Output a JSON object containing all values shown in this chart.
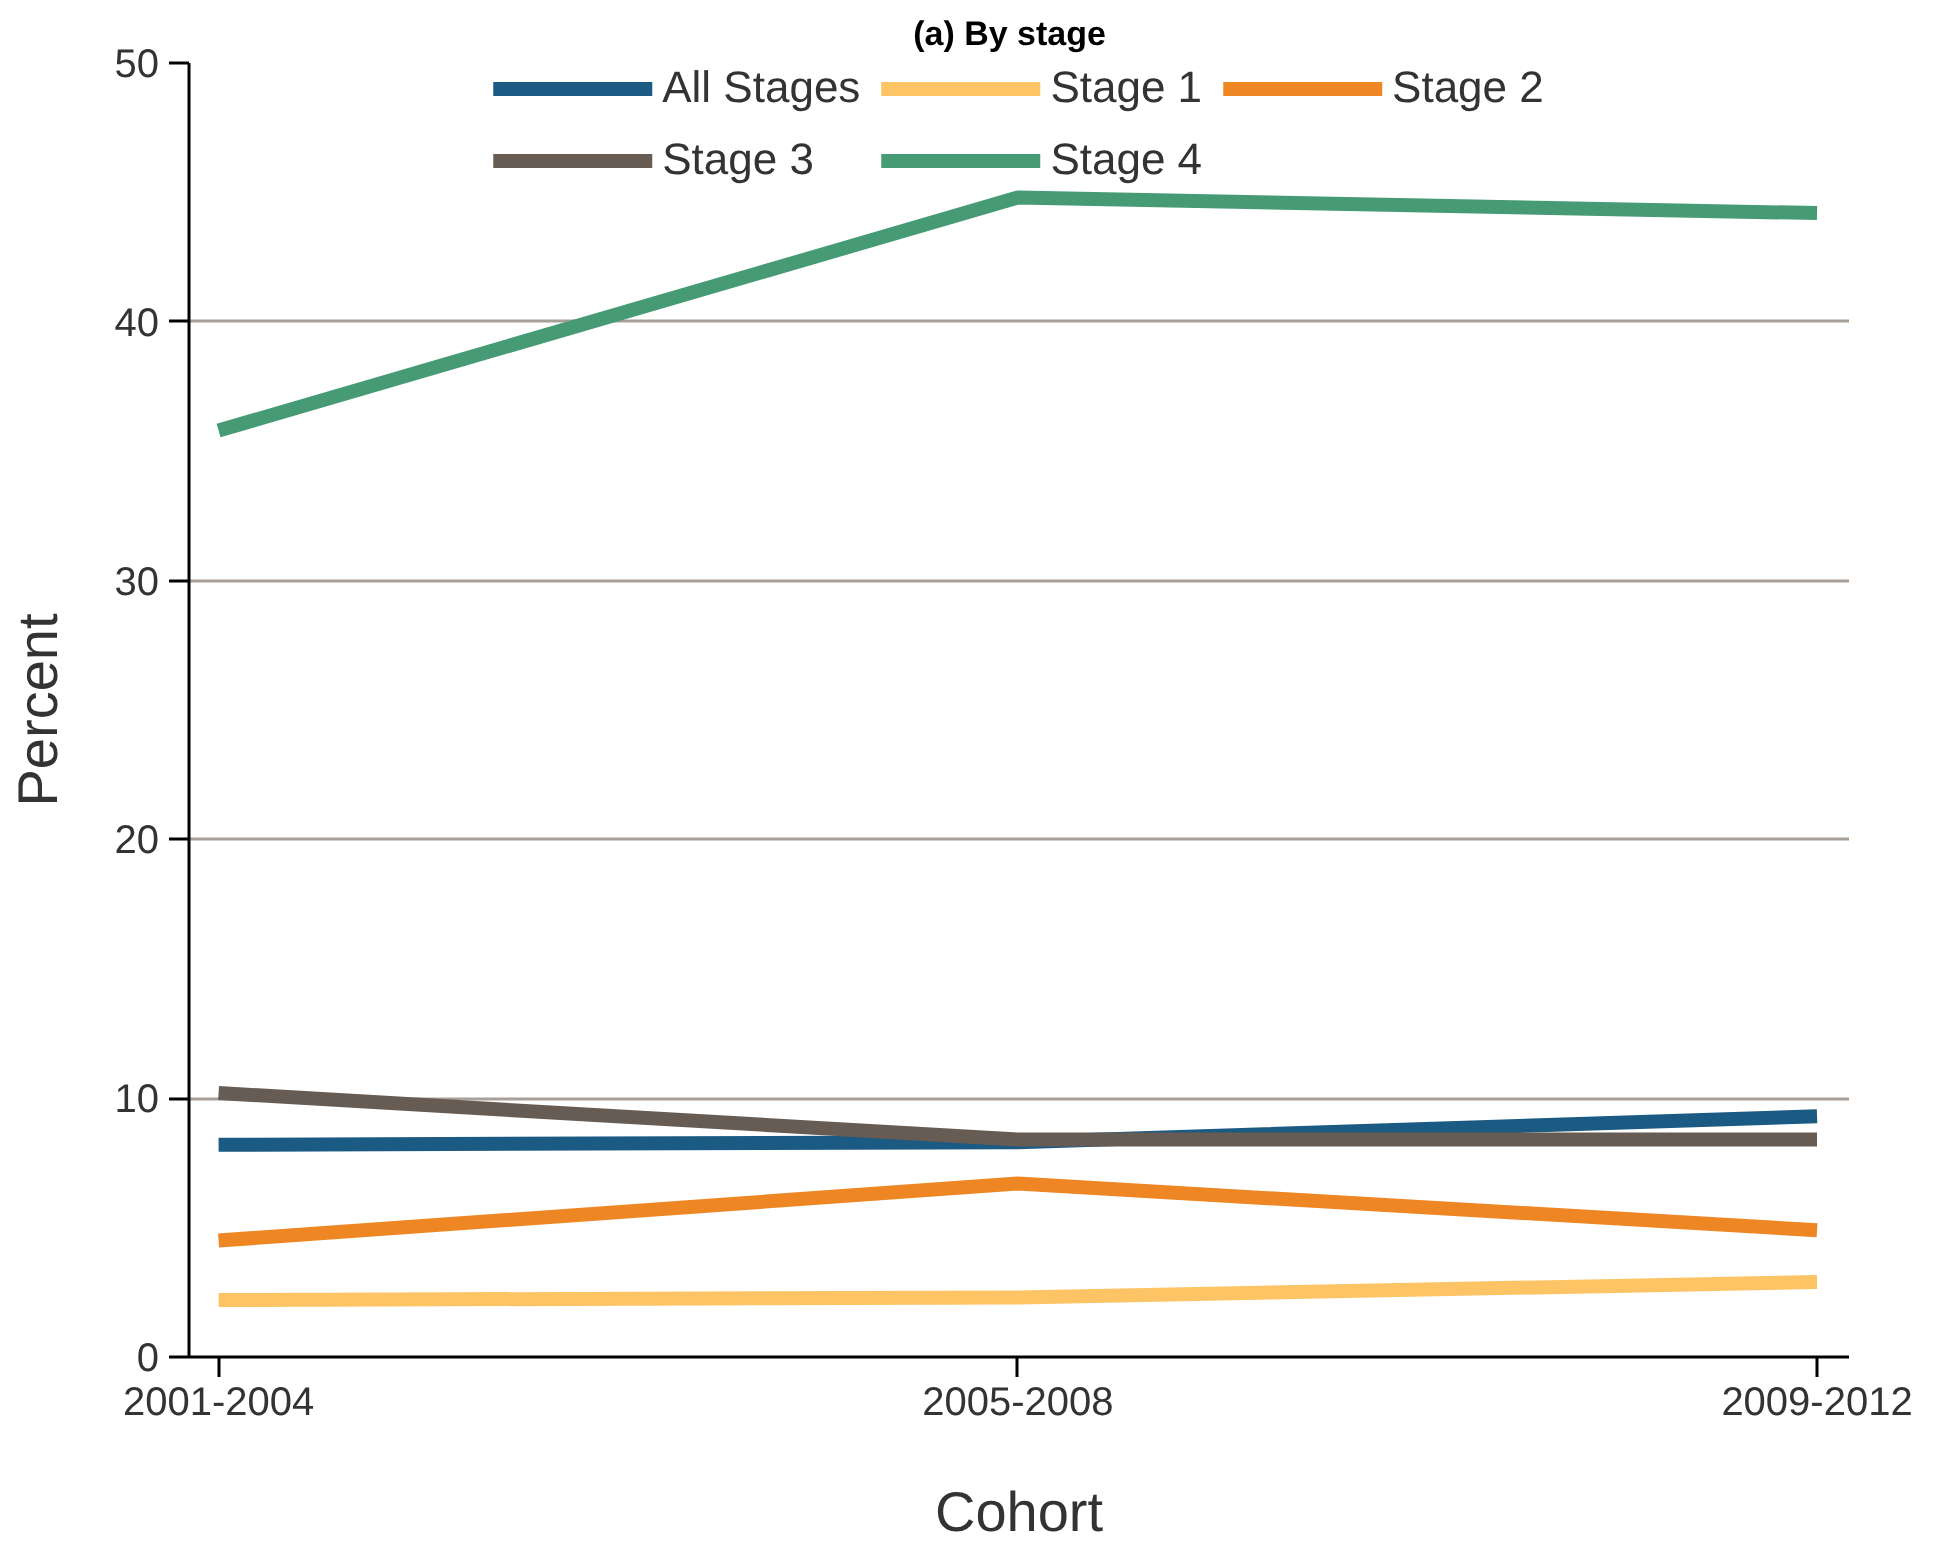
{
  "chart_data": {
    "type": "line",
    "title": "(a)   By stage",
    "xlabel": "Cohort",
    "ylabel": "Percent",
    "categories": [
      "2001-2004",
      "2005-2008",
      "2009-2012"
    ],
    "ylim": [
      0,
      50
    ],
    "yticks": [
      0,
      10,
      20,
      30,
      40,
      50
    ],
    "grid": "y",
    "legend": "top",
    "line_style": "solid",
    "marker": "none",
    "series": [
      {
        "name": "All Stages",
        "color": "#1b5a82",
        "values": [
          8.2,
          8.3,
          9.3
        ]
      },
      {
        "name": "Stage 1",
        "color": "#fdc466",
        "values": [
          2.2,
          2.3,
          2.9
        ]
      },
      {
        "name": "Stage 2",
        "color": "#ee8624",
        "values": [
          4.5,
          6.7,
          4.9
        ]
      },
      {
        "name": "Stage 3",
        "color": "#675c53",
        "values": [
          10.2,
          8.4,
          8.4
        ]
      },
      {
        "name": "Stage 4",
        "color": "#469b74",
        "values": [
          35.8,
          44.8,
          44.2
        ]
      }
    ]
  }
}
